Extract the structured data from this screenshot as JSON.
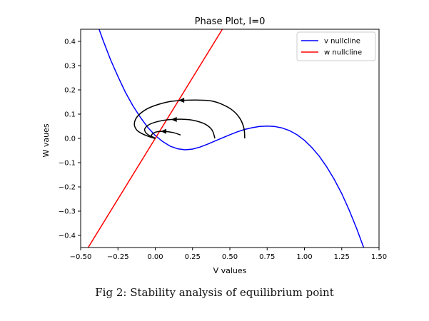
{
  "caption": "Fig 2: Stability analysis of equilibrium point",
  "chart_data": {
    "type": "line",
    "title": "Phase Plot, I=0",
    "xlabel": "V values",
    "ylabel": "W vaues",
    "xlim": [
      -0.5,
      1.5
    ],
    "ylim": [
      -0.45,
      0.45
    ],
    "xticks": [
      -0.5,
      -0.25,
      0.0,
      0.25,
      0.5,
      0.75,
      1.0,
      1.25,
      1.5
    ],
    "xtick_labels": [
      "−0.50",
      "−0.25",
      "0.00",
      "0.25",
      "0.50",
      "0.75",
      "1.00",
      "1.25",
      "1.50"
    ],
    "yticks": [
      -0.4,
      -0.3,
      -0.2,
      -0.1,
      0.0,
      0.1,
      0.2,
      0.3,
      0.4
    ],
    "ytick_labels": [
      "−0.4",
      "−0.3",
      "−0.2",
      "−0.1",
      "0.0",
      "0.1",
      "0.2",
      "0.3",
      "0.4"
    ],
    "legend_position": "top-right",
    "series": [
      {
        "name": "v nullcline",
        "color": "#0000ff",
        "x": [
          -0.4,
          -0.35,
          -0.3,
          -0.25,
          -0.2,
          -0.15,
          -0.1,
          -0.05,
          0.0,
          0.05,
          0.1,
          0.15,
          0.2,
          0.25,
          0.3,
          0.35,
          0.4,
          0.45,
          0.5,
          0.55,
          0.6,
          0.65,
          0.7,
          0.75,
          0.8,
          0.85,
          0.9,
          0.95,
          1.0,
          1.05,
          1.1,
          1.15,
          1.2,
          1.25,
          1.3,
          1.35,
          1.4
        ],
        "y": [
          0.49,
          0.405,
          0.325,
          0.255,
          0.19,
          0.135,
          0.087,
          0.045,
          0.012,
          -0.013,
          -0.032,
          -0.043,
          -0.047,
          -0.044,
          -0.036,
          -0.024,
          -0.011,
          0.002,
          0.015,
          0.027,
          0.037,
          0.044,
          0.049,
          0.051,
          0.049,
          0.043,
          0.032,
          0.015,
          -0.008,
          -0.038,
          -0.074,
          -0.118,
          -0.169,
          -0.228,
          -0.296,
          -0.372,
          -0.455
        ]
      },
      {
        "name": "w nullcline",
        "color": "#ff0000",
        "x": [
          -0.45,
          0.45
        ],
        "y": [
          -0.45,
          0.45
        ]
      }
    ],
    "trajectories": [
      {
        "color": "#000000",
        "x": [
          0.6,
          0.595,
          0.57,
          0.52,
          0.45,
          0.37,
          0.28,
          0.19,
          0.1,
          0.02,
          -0.06,
          -0.12,
          -0.14,
          -0.125,
          -0.09,
          -0.04,
          0.0
        ],
        "y": [
          0.0,
          0.04,
          0.08,
          0.115,
          0.14,
          0.155,
          0.158,
          0.157,
          0.152,
          0.14,
          0.12,
          0.09,
          0.06,
          0.035,
          0.02,
          0.007,
          0.0
        ],
        "arrow_at": [
          0.18,
          0.157
        ]
      },
      {
        "color": "#000000",
        "x": [
          0.4,
          0.38,
          0.33,
          0.25,
          0.17,
          0.09,
          0.02,
          -0.04,
          -0.07,
          -0.065,
          -0.04,
          -0.01,
          0.0
        ],
        "y": [
          0.0,
          0.035,
          0.06,
          0.075,
          0.079,
          0.077,
          0.07,
          0.057,
          0.04,
          0.025,
          0.012,
          0.004,
          0.0
        ],
        "arrow_at": [
          0.13,
          0.078
        ]
      },
      {
        "color": "#000000",
        "x": [
          0.17,
          0.12,
          0.06,
          0.01,
          -0.02,
          -0.025,
          -0.015,
          0.0
        ],
        "y": [
          0.014,
          0.024,
          0.029,
          0.027,
          0.018,
          0.008,
          0.002,
          0.0
        ],
        "arrow_at": [
          0.06,
          0.029
        ]
      }
    ]
  }
}
